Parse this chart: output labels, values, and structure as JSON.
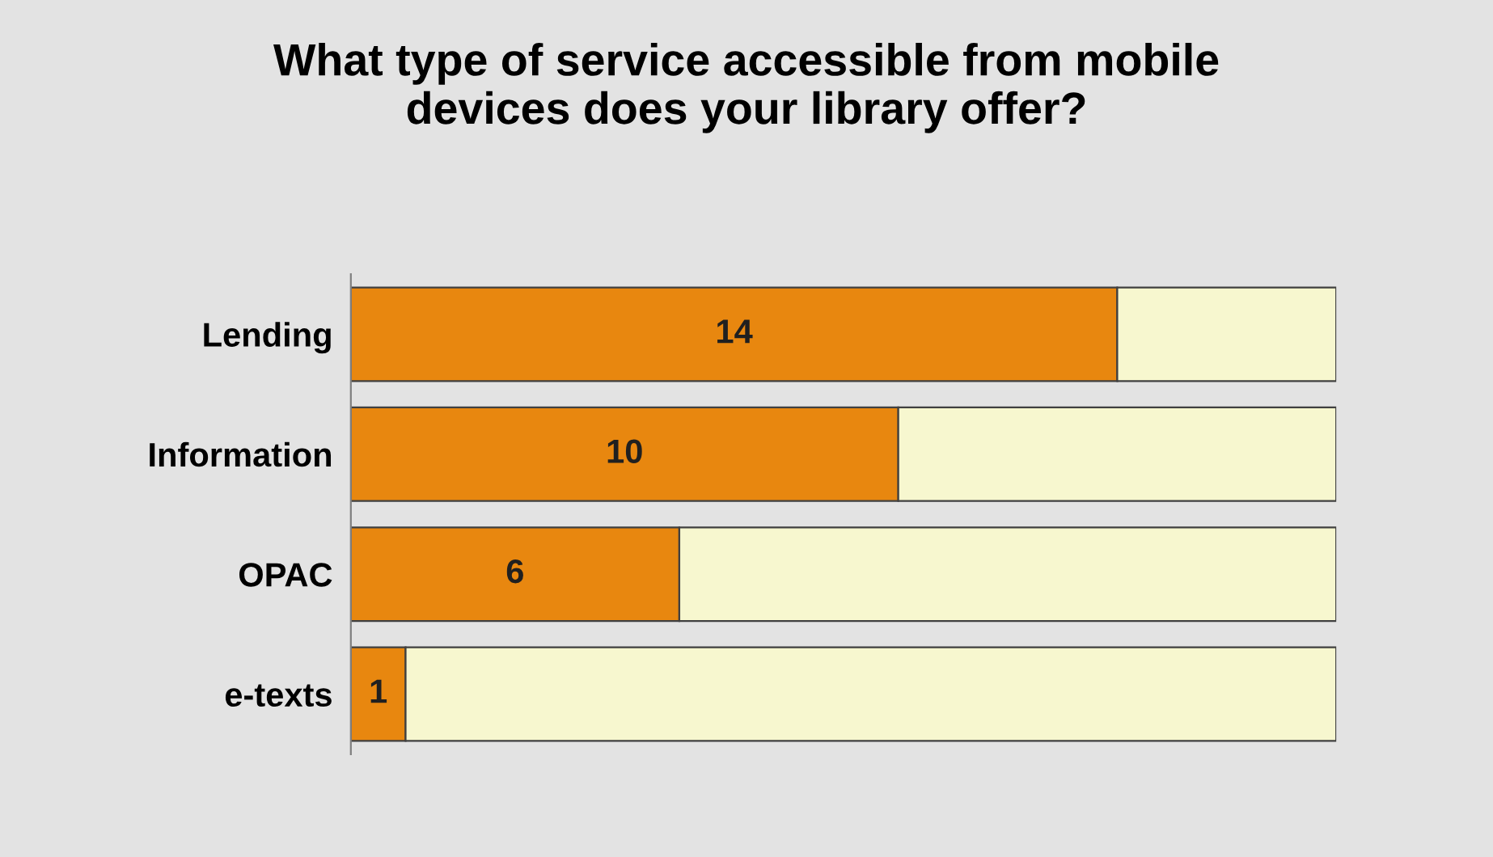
{
  "chart_data": {
    "type": "bar",
    "orientation": "horizontal",
    "stacked": true,
    "title": "What type of service accessible from mobile\ndevices does your library offer?",
    "categories": [
      "Lending",
      "Information",
      "OPAC",
      "e-texts"
    ],
    "series": [
      {
        "color": "#e8870f",
        "values": [
          14,
          10,
          6,
          1
        ],
        "value_labels": [
          "14",
          "10",
          "6",
          "1"
        ]
      },
      {
        "color": "#f7f7cf",
        "values": [
          4,
          8,
          12,
          17
        ],
        "value_labels": [
          null,
          null,
          null,
          null
        ]
      }
    ],
    "tick_labels": "y",
    "grid": false,
    "legend": false
  }
}
